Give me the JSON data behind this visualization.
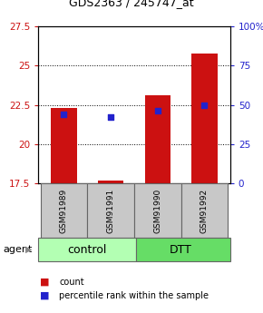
{
  "title": "GDS2363 / 245747_at",
  "samples": [
    "GSM91989",
    "GSM91991",
    "GSM91990",
    "GSM91992"
  ],
  "groups": [
    "control",
    "control",
    "DTT",
    "DTT"
  ],
  "ctrl_color": "#b3ffb3",
  "dtt_color": "#66dd66",
  "bar_tops": [
    22.3,
    17.68,
    23.1,
    25.8
  ],
  "bar_bottom": 17.5,
  "bar_color": "#cc1111",
  "blue_pct": [
    44,
    42,
    46,
    50
  ],
  "blue_dot_color": "#2222cc",
  "ylim_left": [
    17.5,
    27.5
  ],
  "ylim_right": [
    0,
    100
  ],
  "yticks_left": [
    17.5,
    20.0,
    22.5,
    25.0,
    27.5
  ],
  "ytick_labels_left": [
    "17.5",
    "20",
    "22.5",
    "25",
    "27.5"
  ],
  "yticks_right": [
    0,
    25,
    50,
    75,
    100
  ],
  "ytick_labels_right": [
    "0",
    "25",
    "50",
    "75",
    "100%"
  ],
  "grid_ticks": [
    20.0,
    22.5,
    25.0
  ],
  "left_tick_color": "#cc1111",
  "right_tick_color": "#2222cc",
  "bar_width": 0.55,
  "legend_count_color": "#cc1111",
  "legend_pct_color": "#2222cc",
  "sample_box_color": "#c8c8c8",
  "sample_box_edgecolor": "#666666",
  "title_fontsize": 9,
  "tick_fontsize": 7.5,
  "sample_fontsize": 6.5,
  "group_fontsize": 9,
  "legend_fontsize": 7,
  "agent_fontsize": 8
}
